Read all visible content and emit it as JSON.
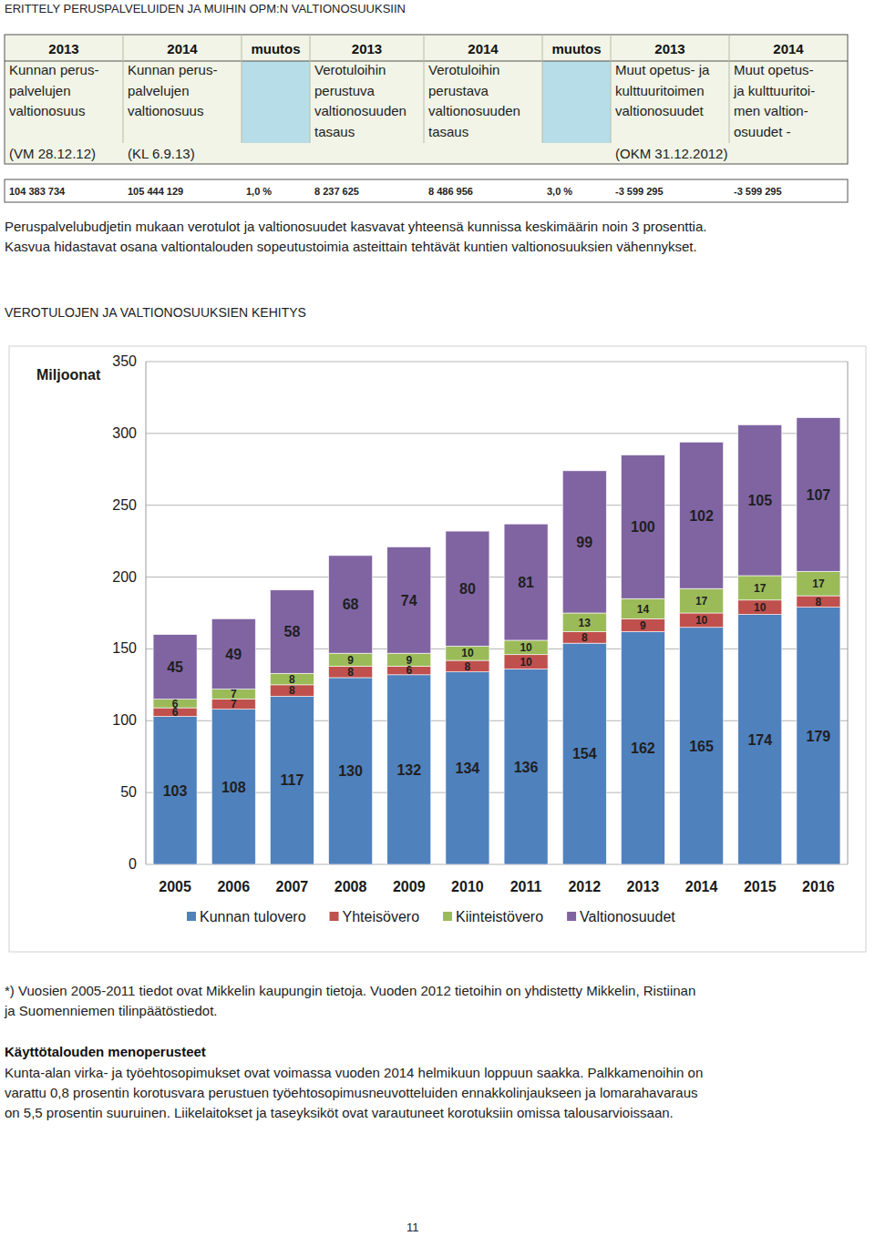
{
  "heading": "ERITTELY PERUSPALVELUIDEN JA MUIHIN OPM:N VALTIONOSUUKSIIN",
  "table": {
    "header": [
      "2013",
      "2014",
      "muutos",
      "2013",
      "2014",
      "muutos",
      "2013",
      "2014"
    ],
    "labels": [
      [
        "Kunnan perus-",
        "palvelujen",
        "valtionosuus"
      ],
      [
        "Kunnan perus-",
        "palvelujen",
        "valtionosuus"
      ],
      [],
      [
        "Verotuloihin",
        "perustuva",
        "valtionosuuden",
        "tasaus"
      ],
      [
        "Verotuloihin",
        "perustava",
        "valtionosuuden",
        "tasaus"
      ],
      [],
      [
        "Muut opetus- ja",
        "kulttuuritoimen",
        "valtionosuudet"
      ],
      [
        "Muut opetus-",
        "ja kulttuuritoi-",
        "men valtion-",
        "osuudet -"
      ]
    ],
    "sources": [
      {
        "column": 0,
        "text": "(VM 28.12.12)"
      },
      {
        "column": 1,
        "text": "(KL 6.9.13)"
      },
      {
        "column": 6,
        "text": "(OKM 31.12.2012)"
      }
    ],
    "row": [
      "104 383 734",
      "105 444 129",
      "1,0 %",
      "8 237 625",
      "8 486 956",
      "3,0 %",
      "-3 599 295",
      "-3 599 295"
    ]
  },
  "paragraph": [
    "Peruspalvelubudjetin mukaan verotulot ja valtionosuudet kasvavat yhteensä kunnissa keskimäärin noin 3 prosenttia.",
    "Kasvua hidastavat osana valtiontalouden sopeutustoimia asteittain tehtävät kuntien valtionosuuksien vähennykset."
  ],
  "chart_data": {
    "type": "bar",
    "title": "VEROTULOJEN JA VALTIONOSUUKSIEN KEHITYS",
    "y_label": "Miljoonat",
    "categories": [
      "2005",
      "2006",
      "2007",
      "2008",
      "2009",
      "2010",
      "2011",
      "2012",
      "2013",
      "2014",
      "2015",
      "2016"
    ],
    "series": [
      {
        "name": "Kunnan tulovero",
        "color": "#4f81bd",
        "values": [
          103,
          108,
          117,
          130,
          132,
          134,
          136,
          154,
          162,
          165,
          174,
          179
        ]
      },
      {
        "name": "Yhteisövero",
        "color": "#c0504d",
        "values": [
          6,
          7,
          8,
          8,
          6,
          8,
          10,
          8,
          9,
          10,
          10,
          8
        ]
      },
      {
        "name": "Kiinteistövero",
        "color": "#9bbb59",
        "values": [
          6,
          7,
          8,
          9,
          9,
          10,
          10,
          13,
          14,
          17,
          17,
          17
        ]
      },
      {
        "name": "Valtionosuudet",
        "color": "#8064a2",
        "values": [
          45,
          49,
          58,
          68,
          74,
          80,
          81,
          99,
          100,
          102,
          105,
          107
        ]
      }
    ],
    "stacked": true,
    "data_labels": true,
    "ylim": [
      0,
      350
    ],
    "yticks": [
      0,
      50,
      100,
      150,
      200,
      250,
      300,
      350
    ],
    "grid": true,
    "legend": "bottom"
  },
  "footnote": [
    "*) Vuosien 2005-2011 tiedot ovat Mikkelin kaupungin tietoja. Vuoden 2012 tietoihin on yhdistetty Mikkelin, Ristiinan",
    "ja Suomenniemen tilinpäätöstiedot."
  ],
  "section": {
    "title": "Käyttötalouden menoperusteet",
    "lines": [
      "Kunta-alan virka- ja työehtosopimukset ovat voimassa vuoden 2014 helmikuun loppuun saakka. Palkkamenoihin on",
      "varattu 0,8 prosentin korotusvara perustuen työehtosopimusneuvotteluiden ennakkolinjaukseen ja lomarahavaraus",
      "on 5,5 prosentin suuruinen. Liikelaitokset ja taseyksiköt ovat varautuneet korotuksiin omissa talousarvioissaan."
    ]
  },
  "page_number": "11"
}
